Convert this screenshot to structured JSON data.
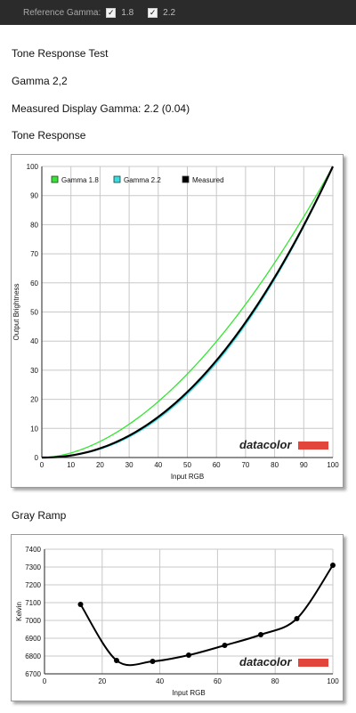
{
  "top_bar": {
    "label": "Reference Gamma:",
    "options": [
      {
        "label": "1.8",
        "checked": true
      },
      {
        "label": "2.2",
        "checked": true
      }
    ]
  },
  "headings": {
    "title": "Tone Response Test",
    "gamma": "Gamma 2,2",
    "measured": "Measured Display Gamma: 2.2 (0.04)",
    "tone_response": "Tone Response",
    "gray_ramp": "Gray Ramp"
  },
  "logo": {
    "text": "datacolor",
    "accent_color": "#e2453c"
  },
  "chart_data": [
    {
      "type": "line",
      "xlabel": "Input RGB",
      "ylabel": "Output Brightness",
      "xlim": [
        0,
        100
      ],
      "ylim": [
        0,
        100
      ],
      "xticks": [
        0,
        10,
        20,
        30,
        40,
        50,
        60,
        70,
        80,
        90,
        100
      ],
      "yticks": [
        0,
        10,
        20,
        30,
        40,
        50,
        60,
        70,
        80,
        90,
        100
      ],
      "grid": true,
      "legend_position": "top-left",
      "series": [
        {
          "name": "Gamma 1.8",
          "color": "#33e633",
          "gamma": 1.8
        },
        {
          "name": "Gamma 2.2",
          "color": "#33e0e0",
          "gamma": 2.2
        },
        {
          "name": "Measured",
          "color": "#000000",
          "gamma": 2.15
        }
      ]
    },
    {
      "type": "line",
      "xlabel": "Input RGB",
      "ylabel": "Kelvin",
      "xlim": [
        0,
        100
      ],
      "ylim": [
        6700,
        7400
      ],
      "xticks": [
        0,
        20,
        40,
        60,
        80,
        100
      ],
      "yticks": [
        6700,
        6800,
        6900,
        7000,
        7100,
        7200,
        7300,
        7400
      ],
      "grid": true,
      "series": [
        {
          "color": "#000000",
          "x": [
            12.5,
            25,
            37.5,
            50,
            62.5,
            75,
            87.5,
            100
          ],
          "y": [
            7090,
            6775,
            6770,
            6805,
            6860,
            6920,
            7010,
            7310
          ]
        }
      ]
    }
  ]
}
